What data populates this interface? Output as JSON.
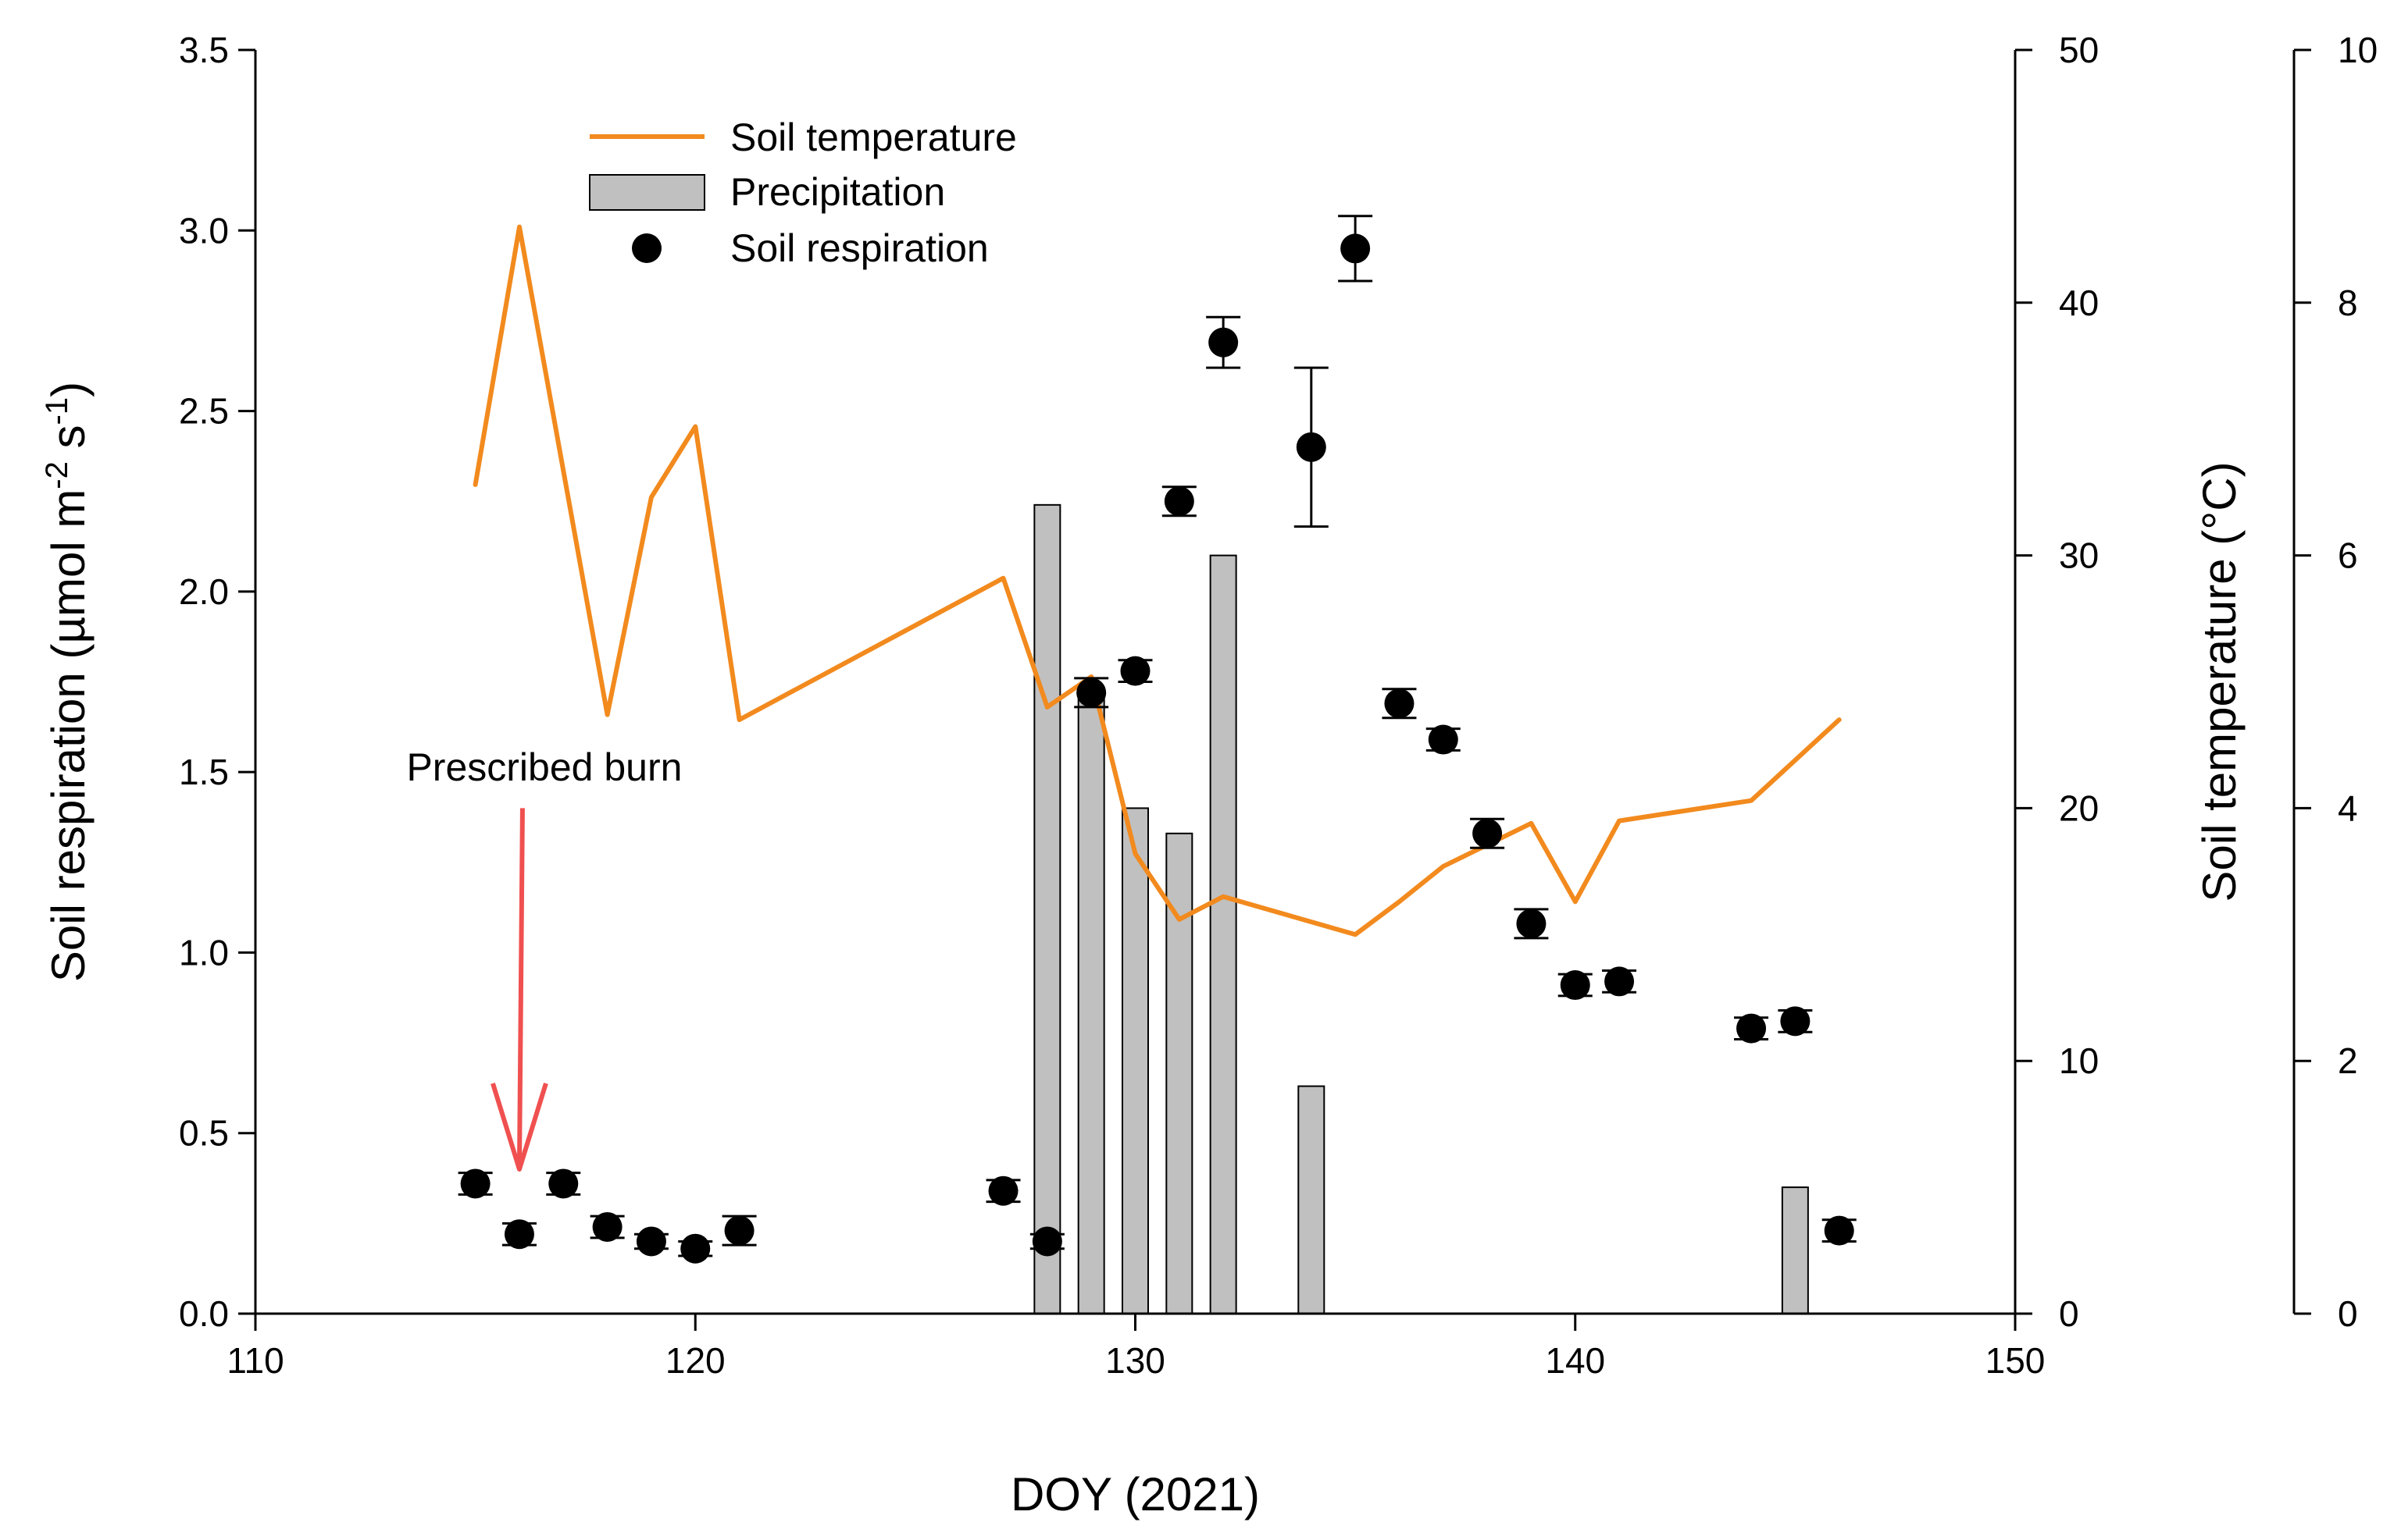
{
  "chart_data": {
    "type": "combo",
    "title": "",
    "xlabel": "DOY (2021)",
    "xlim": [
      110,
      150
    ],
    "xticks": [
      110,
      120,
      130,
      140,
      150
    ],
    "axes": {
      "left": {
        "label_main": "Soil respiration (µmol m",
        "label_sup1": "-2",
        "label_mid": " s",
        "label_sup2": "-1",
        "label_end": ")",
        "lim": [
          0,
          3.5
        ],
        "ticks": [
          "0.0",
          "0.5",
          "1.0",
          "1.5",
          "2.0",
          "2.5",
          "3.0",
          "3.5"
        ]
      },
      "right_inner": {
        "label": "Soil temperature (°C)",
        "lim": [
          0,
          50
        ],
        "ticks": [
          "0",
          "10",
          "20",
          "30",
          "40",
          "50"
        ]
      },
      "right_outer": {
        "label": "",
        "lim": [
          0,
          10
        ],
        "ticks": [
          "0",
          "2",
          "4",
          "6",
          "8",
          "10"
        ]
      }
    },
    "legend": {
      "position": "top-left",
      "entries": [
        "Soil temperature",
        "Precipitation",
        "Soil respiration"
      ]
    },
    "colors": {
      "temperature_line": "#f28a1e",
      "precip_fill": "#c0c0c0",
      "precip_stroke": "#000000",
      "respiration_marker": "#000000",
      "annotation_arrow": "#f05050"
    },
    "annotation": {
      "text": "Prescribed burn",
      "doy": 116,
      "arrow_from_respiration": 1.4,
      "arrow_to_respiration": 0.4
    },
    "series": [
      {
        "name": "Soil temperature",
        "kind": "line",
        "axis": "right_inner",
        "x": [
          115,
          116,
          118,
          119,
          120,
          121,
          127,
          128,
          129,
          130,
          131,
          132,
          135,
          136,
          137,
          139,
          140,
          141,
          144,
          146
        ],
        "values": [
          32.8,
          43,
          23.7,
          32.3,
          35.1,
          23.5,
          29.1,
          24,
          25.2,
          18.2,
          15.6,
          16.5,
          15,
          16.3,
          17.7,
          19.4,
          16.3,
          19.5,
          20.3,
          23.5
        ]
      },
      {
        "name": "Precipitation",
        "kind": "bar",
        "axis": "right_inner",
        "x": [
          128,
          129,
          130,
          131,
          132,
          134,
          145
        ],
        "values": [
          32,
          24.5,
          20,
          19,
          30,
          9,
          5
        ]
      },
      {
        "name": "Soil respiration",
        "kind": "scatter",
        "axis": "left",
        "x": [
          115,
          116,
          117,
          118,
          119,
          120,
          121,
          127,
          128,
          129,
          130,
          131,
          132,
          134,
          135,
          136,
          137,
          138,
          139,
          140,
          141,
          144,
          145,
          146
        ],
        "values": [
          0.36,
          0.22,
          0.36,
          0.24,
          0.2,
          0.18,
          0.23,
          0.34,
          0.2,
          1.72,
          1.78,
          2.25,
          2.69,
          2.4,
          2.95,
          1.69,
          1.59,
          1.33,
          1.08,
          0.91,
          0.92,
          0.79,
          0.81,
          0.23
        ],
        "errors": [
          0.03,
          0.03,
          0.03,
          0.03,
          0.02,
          0.02,
          0.04,
          0.03,
          0.02,
          0.04,
          0.03,
          0.04,
          0.07,
          0.22,
          0.09,
          0.04,
          0.03,
          0.04,
          0.04,
          0.03,
          0.03,
          0.03,
          0.03,
          0.03
        ]
      }
    ]
  }
}
